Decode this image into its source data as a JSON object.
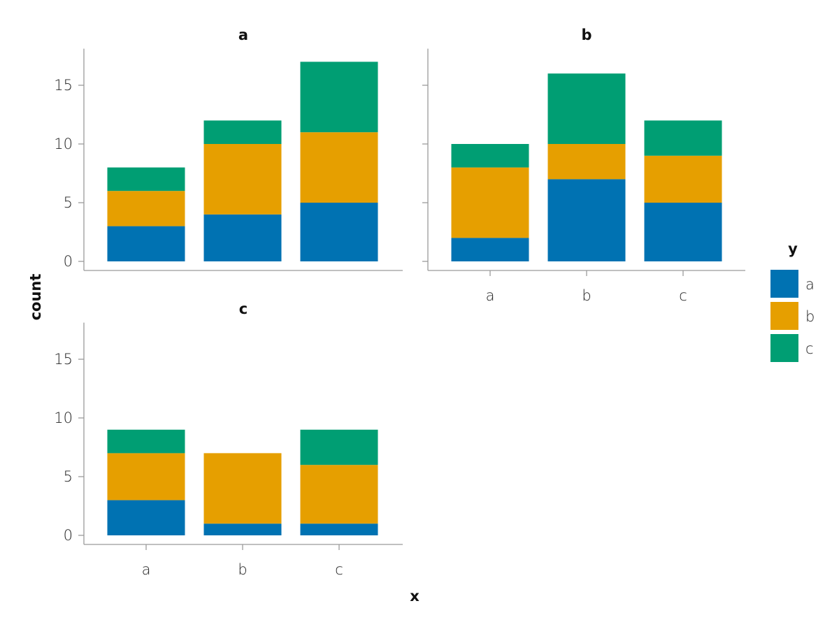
{
  "chart_data": {
    "type": "bar",
    "stacked": true,
    "xlabel": "x",
    "ylabel": "count",
    "ylim": [
      0,
      18
    ],
    "yticks": [
      0,
      5,
      10,
      15
    ],
    "categories": [
      "a",
      "b",
      "c"
    ],
    "legend": {
      "title": "y",
      "placement": "right",
      "entries": [
        {
          "name": "a",
          "color": "#0072B2"
        },
        {
          "name": "b",
          "color": "#E69F00"
        },
        {
          "name": "c",
          "color": "#009E73"
        }
      ]
    },
    "facets": [
      {
        "title": "a",
        "series": [
          {
            "name": "a",
            "values": [
              3,
              4,
              5
            ]
          },
          {
            "name": "b",
            "values": [
              3,
              6,
              6
            ]
          },
          {
            "name": "c",
            "values": [
              2,
              2,
              6
            ]
          }
        ]
      },
      {
        "title": "b",
        "series": [
          {
            "name": "a",
            "values": [
              2,
              7,
              5
            ]
          },
          {
            "name": "b",
            "values": [
              6,
              3,
              4
            ]
          },
          {
            "name": "c",
            "values": [
              2,
              6,
              3
            ]
          }
        ]
      },
      {
        "title": "c",
        "series": [
          {
            "name": "a",
            "values": [
              3,
              1,
              1
            ]
          },
          {
            "name": "b",
            "values": [
              4,
              6,
              5
            ]
          },
          {
            "name": "c",
            "values": [
              2,
              0,
              3
            ]
          }
        ]
      }
    ]
  }
}
